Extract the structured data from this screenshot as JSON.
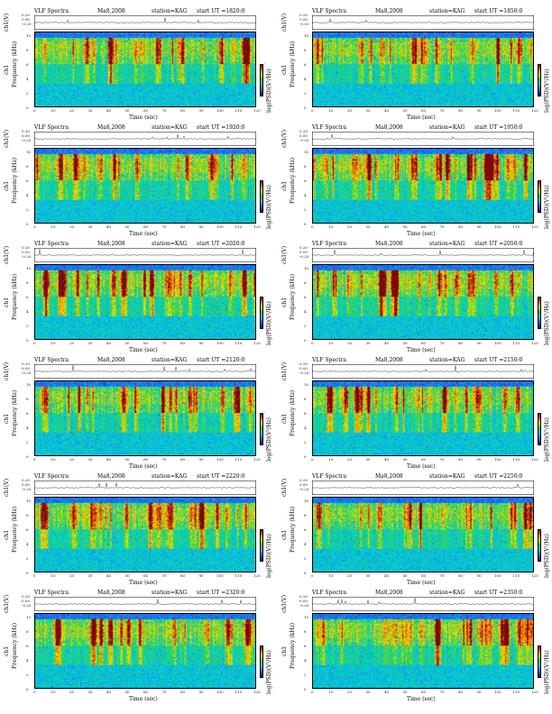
{
  "common": {
    "title": "VLF Spectra",
    "date": "Ma8,2008",
    "station": "station=KAG",
    "start_prefix": "start  UT  =",
    "waveform_ylabel": "ch1(V)",
    "channel_label": "ch1",
    "freq_label": "Frequency  (kHz)",
    "xlabel": "Time  (sec)",
    "colorbar_label": "log(PSD)(V²/Hz)",
    "waveform_ticks": [
      "0.20",
      "0.00",
      "-0.20"
    ],
    "freq_ticks": [
      "10",
      "8",
      "6",
      "4",
      "2",
      "0"
    ],
    "time_ticks": [
      "0",
      "10",
      "20",
      "30",
      "40",
      "50",
      "60",
      "70",
      "80",
      "90",
      "100",
      "110",
      "120"
    ],
    "colorbar_ticks": [
      "-",
      "-"
    ]
  },
  "chart_data": [
    {
      "type": "heatmap",
      "start_ut": "1820:0",
      "xlabel": "Time (sec)",
      "ylabel": "Frequency (kHz)",
      "xlim": [
        0,
        120
      ],
      "ylim": [
        0,
        10
      ]
    },
    {
      "type": "heatmap",
      "start_ut": "1850:0",
      "xlabel": "Time (sec)",
      "ylabel": "Frequency (kHz)",
      "xlim": [
        0,
        120
      ],
      "ylim": [
        0,
        10
      ]
    },
    {
      "type": "heatmap",
      "start_ut": "1920:0",
      "xlabel": "Time (sec)",
      "ylabel": "Frequency (kHz)",
      "xlim": [
        0,
        120
      ],
      "ylim": [
        0,
        10
      ]
    },
    {
      "type": "heatmap",
      "start_ut": "1950:0",
      "xlabel": "Time (sec)",
      "ylabel": "Frequency (kHz)",
      "xlim": [
        0,
        120
      ],
      "ylim": [
        0,
        10
      ]
    },
    {
      "type": "heatmap",
      "start_ut": "2020:0",
      "xlabel": "Time (sec)",
      "ylabel": "Frequency (kHz)",
      "xlim": [
        0,
        120
      ],
      "ylim": [
        0,
        10
      ]
    },
    {
      "type": "heatmap",
      "start_ut": "2050:0",
      "xlabel": "Time (sec)",
      "ylabel": "Frequency (kHz)",
      "xlim": [
        0,
        120
      ],
      "ylim": [
        0,
        10
      ]
    },
    {
      "type": "heatmap",
      "start_ut": "2120:0",
      "xlabel": "Time (sec)",
      "ylabel": "Frequency (kHz)",
      "xlim": [
        0,
        120
      ],
      "ylim": [
        0,
        10
      ]
    },
    {
      "type": "heatmap",
      "start_ut": "2150:0",
      "xlabel": "Time (sec)",
      "ylabel": "Frequency (kHz)",
      "xlim": [
        0,
        120
      ],
      "ylim": [
        0,
        10
      ]
    },
    {
      "type": "heatmap",
      "start_ut": "2220:0",
      "xlabel": "Time (sec)",
      "ylabel": "Frequency (kHz)",
      "xlim": [
        0,
        120
      ],
      "ylim": [
        0,
        10
      ]
    },
    {
      "type": "heatmap",
      "start_ut": "2250:0",
      "xlabel": "Time (sec)",
      "ylabel": "Frequency (kHz)",
      "xlim": [
        0,
        120
      ],
      "ylim": [
        0,
        10
      ]
    },
    {
      "type": "heatmap",
      "start_ut": "2320:0",
      "xlabel": "Time (sec)",
      "ylabel": "Frequency (kHz)",
      "xlim": [
        0,
        120
      ],
      "ylim": [
        0,
        10
      ]
    },
    {
      "type": "heatmap",
      "start_ut": "2350:0",
      "xlabel": "Time (sec)",
      "ylabel": "Frequency (kHz)",
      "xlim": [
        0,
        120
      ],
      "ylim": [
        0,
        10
      ]
    }
  ],
  "colors": {
    "dark_blue": "#00008b",
    "blue": "#1e64ff",
    "cyan": "#00d2e6",
    "green": "#28d24b",
    "yellow": "#f0e600",
    "orange": "#ff8c00",
    "red": "#d21e1e",
    "dark_red": "#780a0a"
  }
}
